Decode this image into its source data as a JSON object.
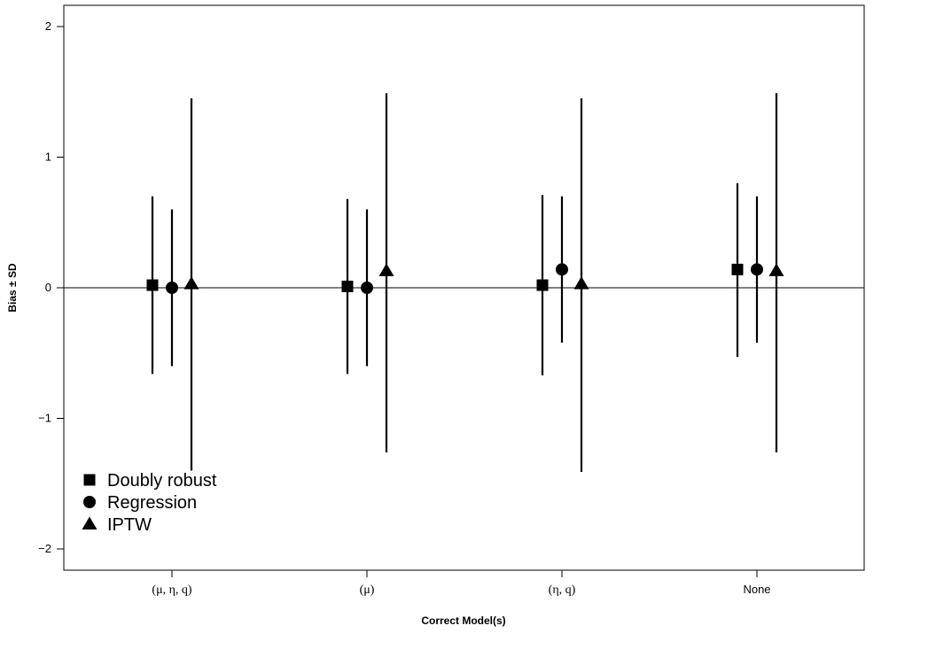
{
  "chart_data": {
    "type": "scatter",
    "subtype": "point-with-error-bars",
    "title": "",
    "xlabel": "Correct Model(s)",
    "ylabel": "Bias ± SD",
    "ylim": [
      -2.15,
      2.15
    ],
    "yticks": [
      2,
      1,
      0,
      -1,
      -2
    ],
    "ytick_labels": [
      "2",
      "1",
      "0",
      "−1",
      "−2"
    ],
    "reference_line_y": 0,
    "grid": false,
    "legend_position": "bottom-left",
    "categories": [
      "(μ, η, q)",
      "(μ)",
      "(η, q)",
      "None"
    ],
    "series": [
      {
        "name": "Doubly robust",
        "marker": "square",
        "values": [
          0.02,
          0.01,
          0.02,
          0.14
        ],
        "lower": [
          -0.66,
          -0.66,
          -0.67,
          -0.53
        ],
        "upper": [
          0.7,
          0.68,
          0.71,
          0.8
        ]
      },
      {
        "name": "Regression",
        "marker": "circle",
        "values": [
          0.0,
          0.0,
          0.14,
          0.14
        ],
        "lower": [
          -0.6,
          -0.6,
          -0.42,
          -0.42
        ],
        "upper": [
          0.6,
          0.6,
          0.7,
          0.7
        ]
      },
      {
        "name": "IPTW",
        "marker": "triangle",
        "values": [
          0.03,
          0.13,
          0.03,
          0.13
        ],
        "lower": [
          -1.4,
          -1.26,
          -1.41,
          -1.26
        ],
        "upper": [
          1.45,
          1.49,
          1.45,
          1.49
        ]
      }
    ]
  }
}
